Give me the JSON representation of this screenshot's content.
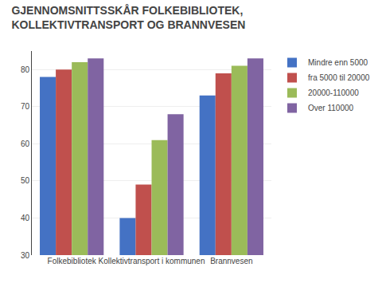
{
  "chart_data": {
    "type": "bar",
    "title": "GJENNOMSNITTSSKÅR FOLKEBIBLIOTEK,\nKOLLEKTIVTRANSPORT OG BRANNVESEN",
    "categories": [
      "Folkebibliotek",
      "Kollektivtransport i kommunen",
      "Brannvesen"
    ],
    "series": [
      {
        "name": "Mindre enn 5000",
        "color": "#4472C4",
        "values": [
          78,
          40,
          73
        ]
      },
      {
        "name": "fra 5000 til 20000",
        "color": "#C0504D",
        "values": [
          80,
          49,
          79
        ]
      },
      {
        "name": "20000-110000",
        "color": "#9BBB59",
        "values": [
          82,
          61,
          81
        ]
      },
      {
        "name": "Over 110000",
        "color": "#8064A2",
        "values": [
          83,
          68,
          83
        ]
      }
    ],
    "ylim": [
      30,
      85
    ],
    "yticks": [
      30,
      40,
      50,
      60,
      70,
      80
    ],
    "grid": true,
    "legend": "right"
  }
}
